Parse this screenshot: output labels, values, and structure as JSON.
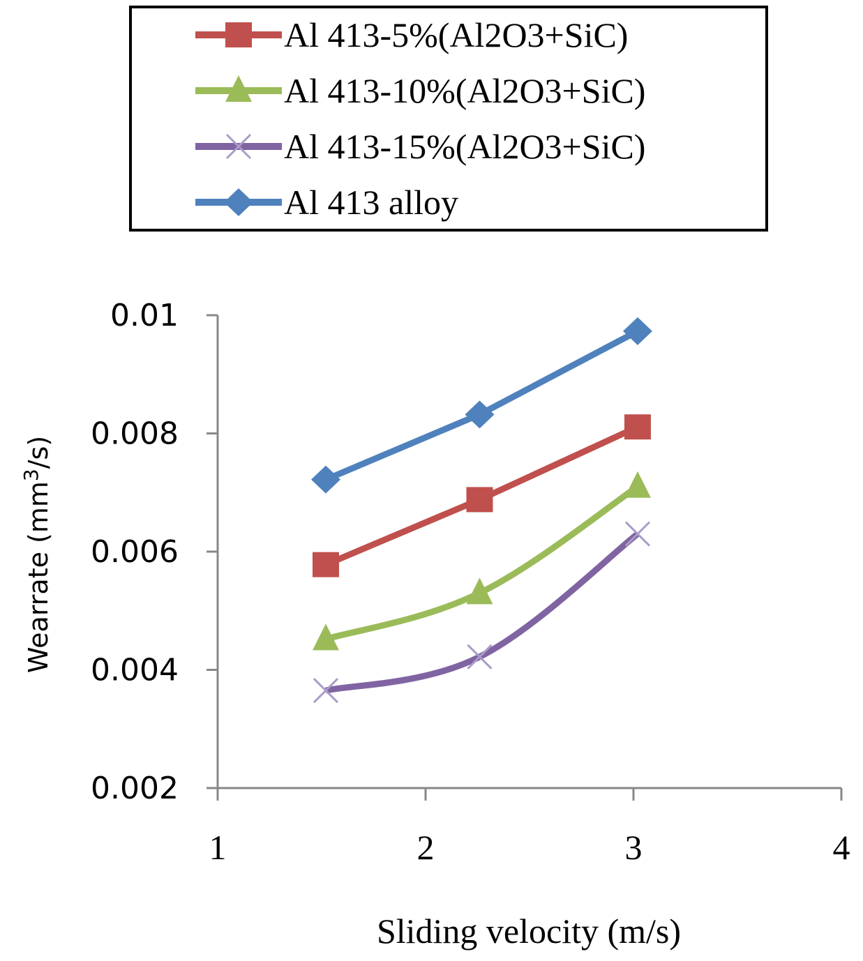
{
  "chart_data": {
    "type": "line",
    "title": "",
    "xlabel": "Sliding velocity (m/s)",
    "ylabel": "Wearrate (mm",
    "ylabel_sup": "3",
    "ylabel_suffix": "/s)",
    "xlim": [
      1,
      4
    ],
    "ylim": [
      0.002,
      0.01
    ],
    "x_ticks": [
      1,
      2,
      3,
      4
    ],
    "x_tick_labels": [
      "1",
      "2",
      "3",
      "4"
    ],
    "y_ticks": [
      0.002,
      0.004,
      0.006,
      0.008,
      0.01
    ],
    "y_tick_labels": [
      "0.002",
      "0.004",
      "0.006",
      "0.008",
      "0.01"
    ],
    "grid": false,
    "legend_position": "top",
    "x": [
      1.52,
      2.26,
      3.02
    ],
    "series": [
      {
        "name": "Al 413-5%(Al2O3+SiC)",
        "marker": "square",
        "color": "#c0504d",
        "smooth": false,
        "values": [
          0.00578,
          0.00688,
          0.00811
        ]
      },
      {
        "name": "Al 413-10%(Al2O3+SiC)",
        "marker": "triangle",
        "color": "#9bbb59",
        "smooth": true,
        "values": [
          0.00452,
          0.0053,
          0.0071
        ]
      },
      {
        "name": "Al 413-15%(Al2O3+SiC)",
        "marker": "x",
        "color": "#8064a2",
        "smooth": true,
        "values": [
          0.00365,
          0.00422,
          0.0063
        ]
      },
      {
        "name": "Al 413 alloy",
        "marker": "diamond",
        "color": "#4f81bd",
        "smooth": false,
        "values": [
          0.00722,
          0.00832,
          0.00973
        ]
      }
    ]
  }
}
